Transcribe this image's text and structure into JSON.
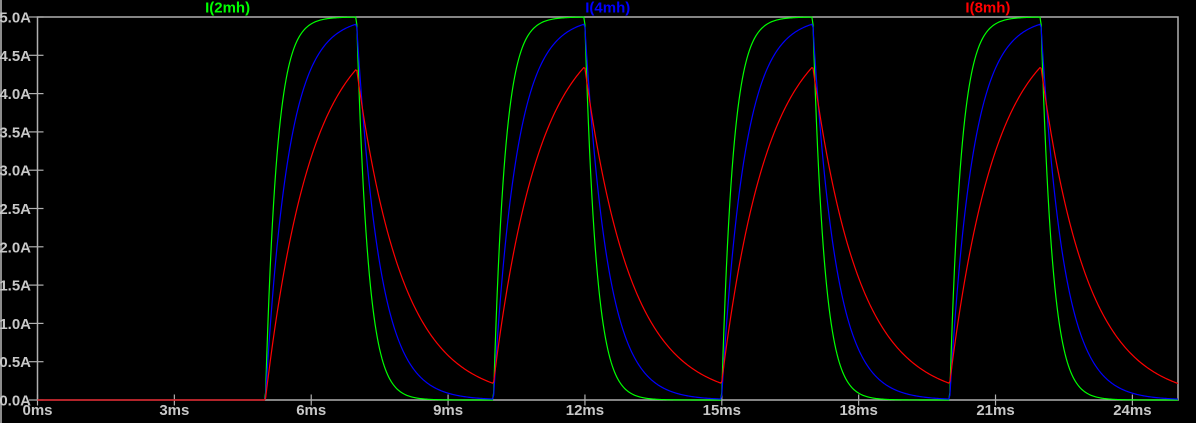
{
  "window": {
    "background": "#000000",
    "left_edge_color": "#8c8c8c"
  },
  "colors": {
    "axis_border": "#b0b0b0",
    "tick": "#b0b0b0",
    "label_text": "#c8c8c8",
    "background": "#000000"
  },
  "chart_data": {
    "type": "line",
    "title": "",
    "grid": false,
    "legend": {
      "position": "top",
      "items": [
        {
          "label": "I(2mh)",
          "color": "#00ff00"
        },
        {
          "label": "I(4mh)",
          "color": "#0000ff"
        },
        {
          "label": "I(8mh)",
          "color": "#ff0000"
        }
      ]
    },
    "x_axis": {
      "unit": "ms",
      "range": [
        0,
        25
      ],
      "tick_values": [
        0,
        3,
        6,
        9,
        12,
        15,
        18,
        21,
        24
      ],
      "tick_labels": [
        "0ms",
        "3ms",
        "6ms",
        "9ms",
        "12ms",
        "15ms",
        "18ms",
        "21ms",
        "24ms"
      ]
    },
    "y_axis": {
      "unit": "A",
      "range": [
        0,
        5
      ],
      "tick_values": [
        0,
        0.5,
        1,
        1.5,
        2,
        2.5,
        3,
        3.5,
        4,
        4.5,
        5
      ],
      "tick_labels": [
        "0.0A",
        "0.5A",
        "1.0A",
        "1.5A",
        "2.0A",
        "2.5A",
        "3.0A",
        "3.5A",
        "4.0A",
        "4.5A",
        "5.0A"
      ]
    },
    "series": [
      {
        "name": "I(2mh)",
        "color": "#00ff00",
        "inductance_mH": 2,
        "tau_ms": 0.25,
        "peak_A": 5.0
      },
      {
        "name": "I(4mh)",
        "color": "#0000ff",
        "inductance_mH": 4,
        "tau_ms": 0.5,
        "peak_A": 4.91
      },
      {
        "name": "I(8mh)",
        "color": "#ff0000",
        "inductance_mH": 8,
        "tau_ms": 1.0,
        "peak_A": 4.33
      }
    ],
    "drive": {
      "steady_state_A": 5,
      "pulse_on_intervals_ms": [
        [
          5,
          7
        ],
        [
          10,
          12
        ],
        [
          15,
          17
        ],
        [
          20,
          22
        ]
      ],
      "residual_at_end_A": {
        "I(2mh)": 0.0,
        "I(4mh)": 0.01,
        "I(8mh)": 0.22
      },
      "note": "RL exponential charge while pulse on, exponential discharge while off; all traces 0A until 5ms"
    }
  }
}
